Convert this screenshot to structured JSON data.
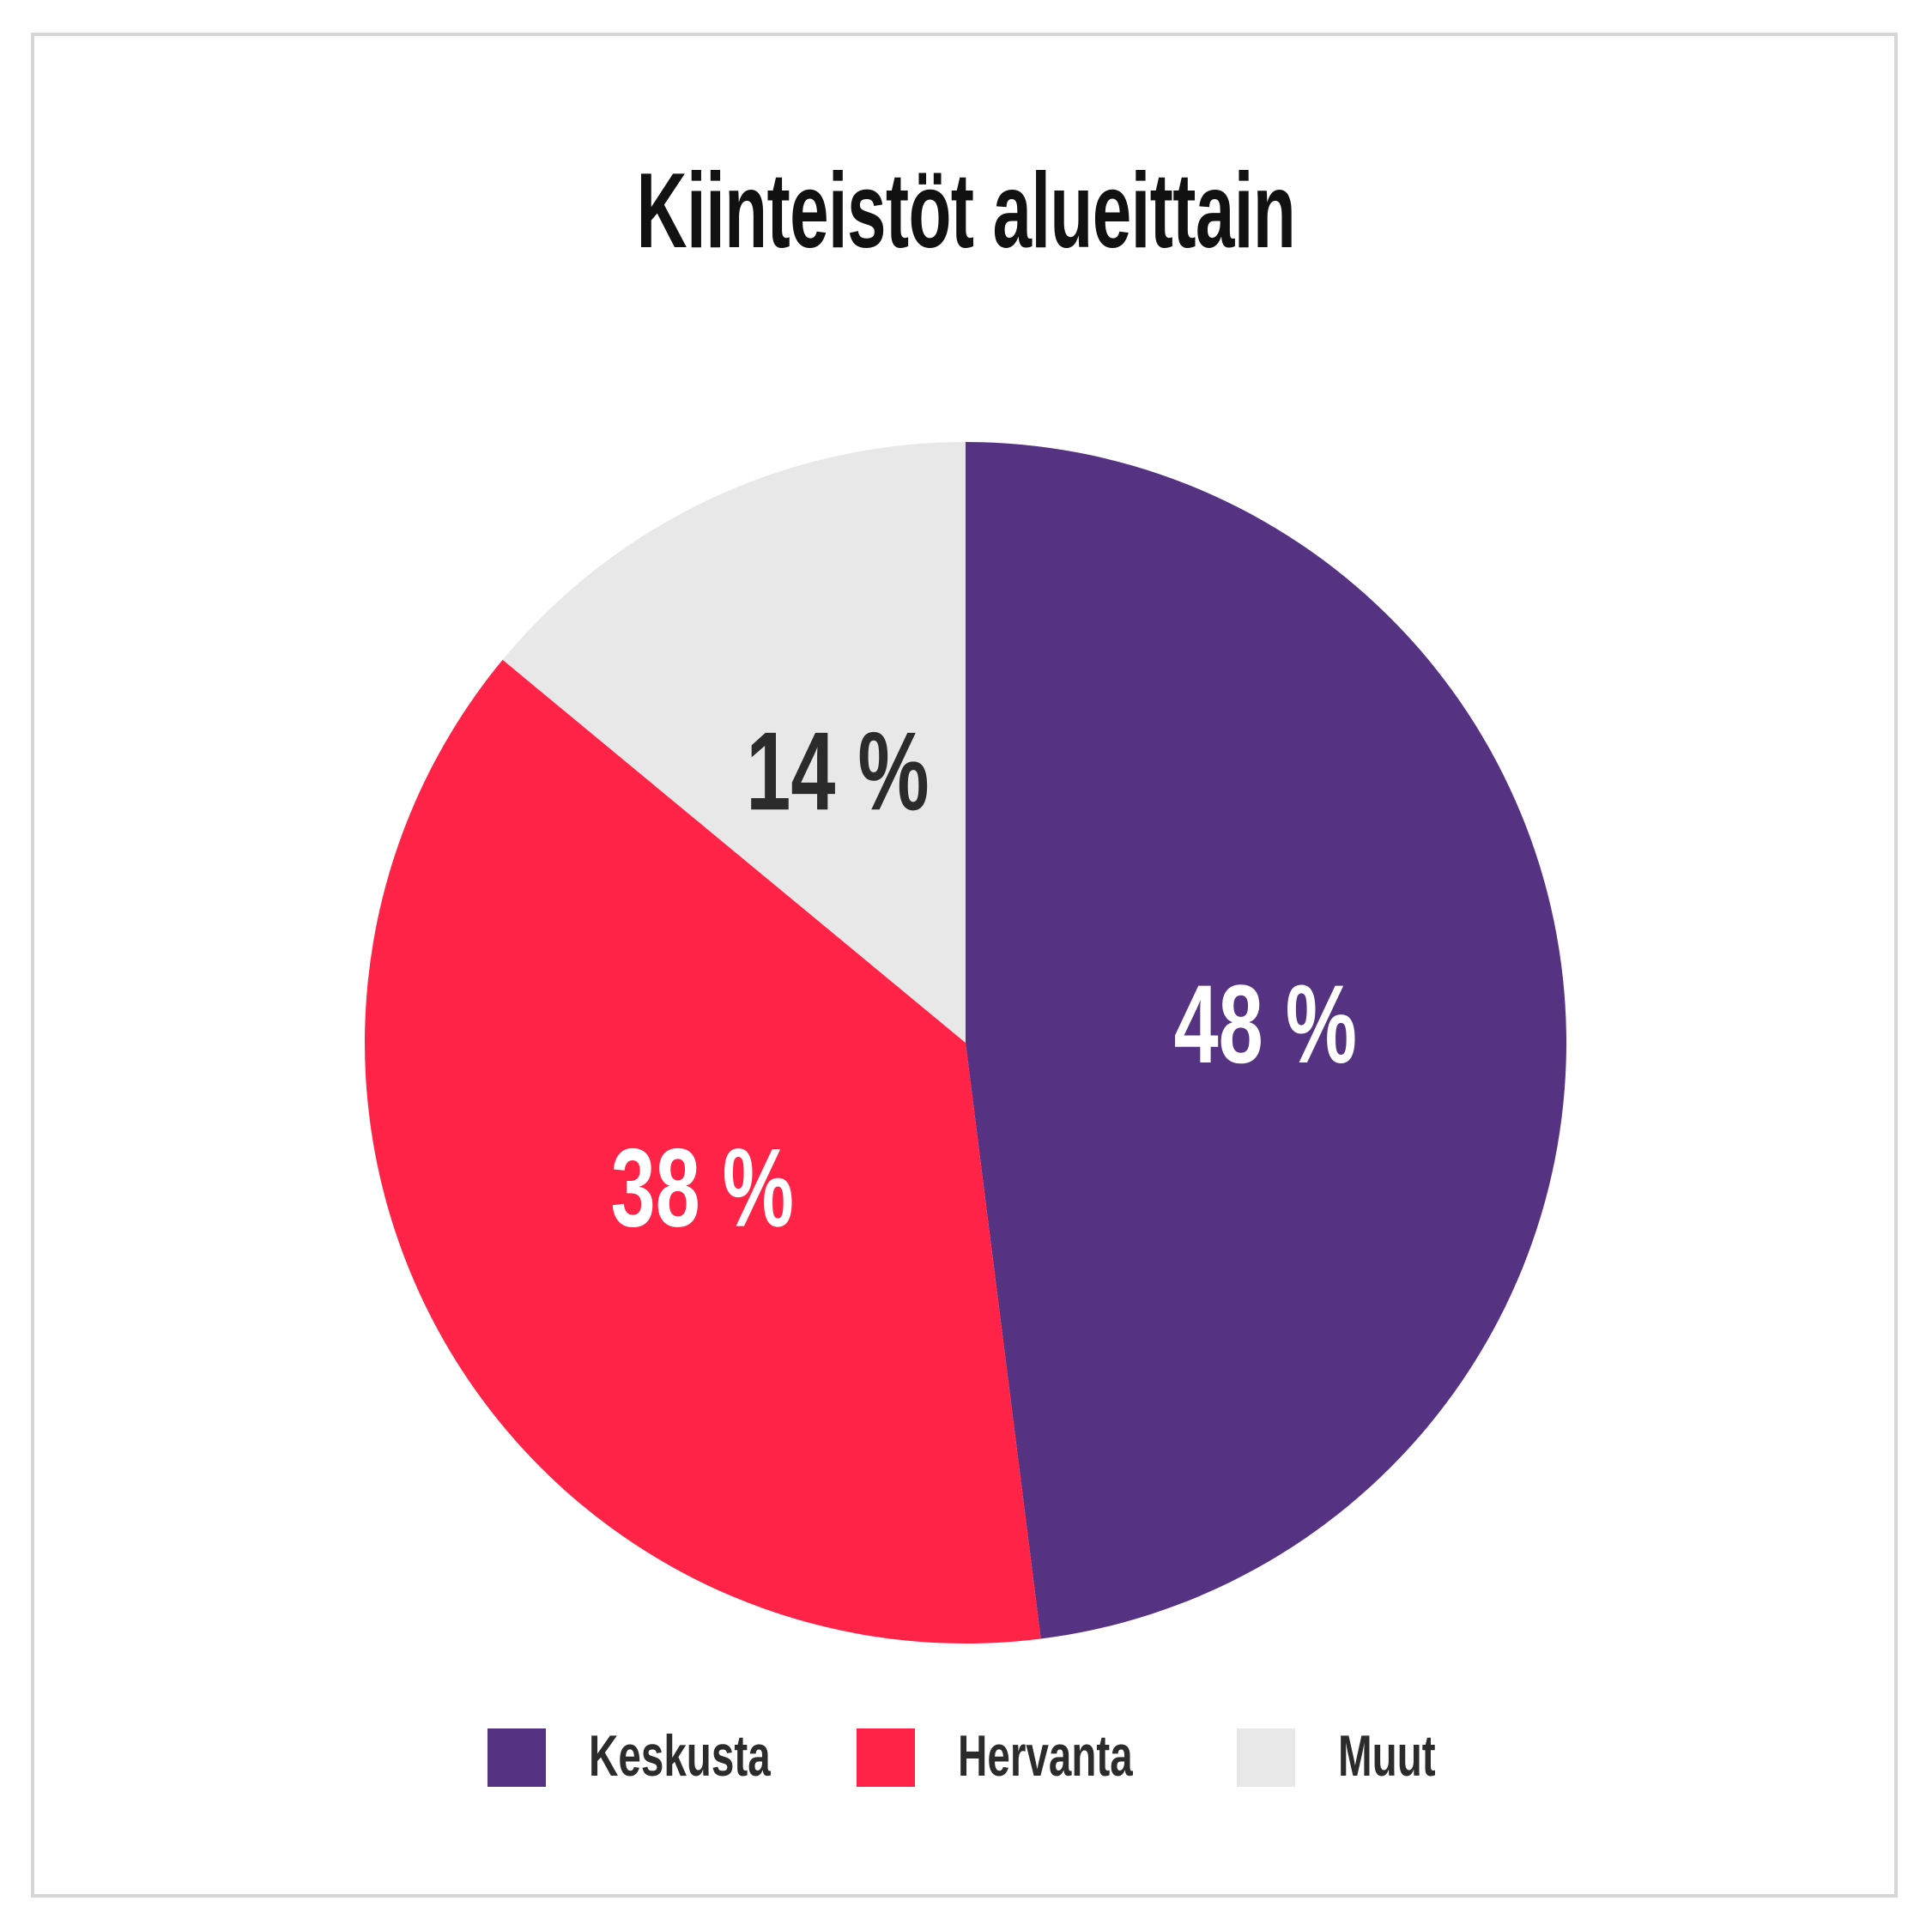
{
  "chart_data": {
    "type": "pie",
    "title": "Kiinteistöt alueittain",
    "slices": [
      {
        "name": "Keskusta",
        "value": 48,
        "label": "48 %",
        "color": "#553282",
        "label_color": "#ffffff"
      },
      {
        "name": "Hervanta",
        "value": 38,
        "label": "38 %",
        "color": "#ff2447",
        "label_color": "#ffffff"
      },
      {
        "name": "Muut",
        "value": 14,
        "label": "14 %",
        "color": "#e8e8e8",
        "label_color": "#2b2b2b"
      }
    ],
    "start": "12 o'clock",
    "direction": "clockwise",
    "legend_position": "bottom"
  }
}
